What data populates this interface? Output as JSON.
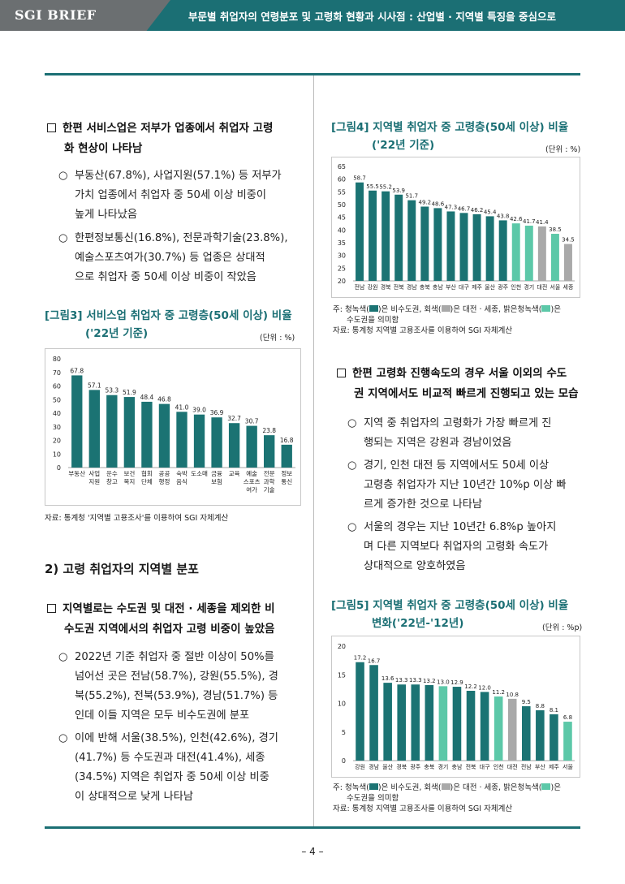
{
  "header": {
    "brand": "SGI BRIEF",
    "title": "부문별 취업자의 연령분포 및 고령화 현황과 시사점 : 산업별 · 지역별 특징을 중심으로"
  },
  "left": {
    "b1": "한편 서비스업은 저부가 업종에서 취업자 고령화 현상이 나타남",
    "b1_l1": "한편 서비스업은 저부가 업종에서 취업자 고령",
    "b1_l2": "화 현상이 나타남",
    "o1_l1": "부동산(67.8%), 사업지원(57.1%) 등 저부가",
    "o1_l2": "가치 업종에서 취업자 중 50세 이상 비중이",
    "o1_l3": "높게 나타났음",
    "o2_l1": "한편정보통신(16.8%), 전문과학기술(23.8%),",
    "o2_l2": "예술스포츠여가(30.7%) 등 업종은 상대적",
    "o2_l3": "으로 취업자 중 50세 이상 비중이 작았음",
    "fig3_title_l1": "[그림3] 서비스업 취업자 중 고령층(50세 이상) 비율",
    "fig3_title_l2": "('22년 기준)",
    "fig3_unit": "(단위 : %)",
    "fig3_source": "자료: 통계청 '지역별 고용조사'를 이용하여 SGI 자체계산",
    "sec2": "2) 고령 취업자의 지역별 분포",
    "b2_l1": "지역별로는 수도권 및 대전 · 세종을 제외한 비",
    "b2_l2": "수도권 지역에서의 취업자 고령 비중이 높았음",
    "o3_l1": "2022년 기준 취업자 중 절반 이상이 50%를",
    "o3_l2": "넘어선 곳은 전남(58.7%), 강원(55.5%), 경",
    "o3_l3": "북(55.2%), 전북(53.9%), 경남(51.7%) 등",
    "o3_l4": "인데 이들 지역은 모두 비수도권에 분포",
    "o4_l1": "이에 반해 서울(38.5%), 인천(42.6%), 경기",
    "o4_l2": "(41.7%) 등 수도권과 대전(41.4%), 세종",
    "o4_l3": "(34.5%) 지역은 취업자 중 50세 이상 비중",
    "o4_l4": "이 상대적으로 낮게 나타남"
  },
  "right": {
    "fig4_title_l1": "[그림4] 지역별 취업자 중 고령층(50세 이상) 비율",
    "fig4_title_l2": "('22년 기준)",
    "fig4_unit": "(단위 : %)",
    "fig4_note_a": "주: 청녹색(",
    "fig4_note_b": ")은 비수도권, 회색(",
    "fig4_note_c": ")은 대전 · 세종, 밝은청녹색(",
    "fig4_note_d": ")은",
    "fig4_note_l2": "수도권을 의미함",
    "fig4_source": "자료: 통계청 지역별 고용조사를 이용하여 SGI 자체계산",
    "b3_l1": "한편 고령화 진행속도의 경우 서울 이외의 수도",
    "b3_l2": "권 지역에서도 비교적 빠르게 진행되고 있는 모습",
    "o5_l1": "지역 중 취업자의 고령화가 가장 빠르게 진",
    "o5_l2": "행되는 지역은 강원과 경남이었음",
    "o6_l1": "경기, 인천 대전 등 지역에서도 50세 이상",
    "o6_l2": "고령층 취업자가 지난 10년간 10%p 이상 빠",
    "o6_l3": "르게 증가한 것으로 나타남",
    "o7_l1": "서울의 경우는 지난 10년간 6.8%p 높아지",
    "o7_l2": "며 다른 지역보다 취업자의 고령화 속도가",
    "o7_l3": "상대적으로 양호하였음",
    "fig5_title_l1": "[그림5] 지역별 취업자 중 고령층(50세 이상) 비율",
    "fig5_title_l2": "변화('22년-'12년)",
    "fig5_unit": "(단위 : %p)",
    "fig5_note_a": "주: 청녹색(",
    "fig5_note_b": ")은 비수도권, 회색(",
    "fig5_note_c": ")은 대전 · 세종, 밝은청녹색(",
    "fig5_note_d": ")은",
    "fig5_note_l2": "수도권을 의미함",
    "fig5_source": "자료: 통계청 지역별 고용조사를 이용하여 SGI 자체계산"
  },
  "bullet_marks": {
    "square": "□",
    "circle": "○"
  },
  "page_number": "– 4 –",
  "colors": {
    "teal": "#1b7373",
    "gray": "#a9a9a9",
    "light_green": "#5cc8a8",
    "header": "#1b6f74"
  },
  "chart_data": [
    {
      "id": "fig3",
      "type": "bar",
      "categories": [
        [
          "부동산"
        ],
        [
          "사업",
          "지원"
        ],
        [
          "운수",
          "창고"
        ],
        [
          "보건",
          "복지"
        ],
        [
          "협회",
          "단체"
        ],
        [
          "공공",
          "행정"
        ],
        [
          "숙박",
          "음식"
        ],
        [
          "도소매"
        ],
        [
          "금융",
          "보험"
        ],
        [
          "교육"
        ],
        [
          "예술",
          "스포츠",
          "여가"
        ],
        [
          "전문",
          "과학",
          "기술"
        ],
        [
          "정보",
          "통신"
        ]
      ],
      "values": [
        67.8,
        57.1,
        53.3,
        51.9,
        48.4,
        46.8,
        41.0,
        39.0,
        36.9,
        32.7,
        30.7,
        23.8,
        16.8
      ],
      "labels": [
        "67.8",
        "57.1",
        "53.3",
        "51.9",
        "48.4",
        "46.8",
        "41.0",
        "39.0",
        "36.9",
        "32.7",
        "30.7",
        "23.8",
        "16.8"
      ],
      "ylim": [
        0,
        80
      ],
      "yticks": [
        0,
        10,
        20,
        30,
        40,
        50,
        60,
        70,
        80
      ],
      "bar_colors": [
        "teal",
        "teal",
        "teal",
        "teal",
        "teal",
        "teal",
        "teal",
        "teal",
        "teal",
        "teal",
        "teal",
        "teal",
        "teal"
      ]
    },
    {
      "id": "fig4",
      "type": "bar",
      "categories": [
        [
          "전남"
        ],
        [
          "강원"
        ],
        [
          "경북"
        ],
        [
          "전북"
        ],
        [
          "경남"
        ],
        [
          "충북"
        ],
        [
          "충남"
        ],
        [
          "부산"
        ],
        [
          "대구"
        ],
        [
          "제주"
        ],
        [
          "울산"
        ],
        [
          "광주"
        ],
        [
          "인천"
        ],
        [
          "경기"
        ],
        [
          "대전"
        ],
        [
          "서울"
        ],
        [
          "세종"
        ]
      ],
      "values": [
        58.7,
        55.5,
        55.2,
        53.9,
        51.7,
        49.2,
        48.6,
        47.3,
        46.7,
        46.2,
        45.4,
        43.8,
        42.6,
        41.7,
        41.4,
        38.5,
        34.5
      ],
      "labels": [
        "58.7",
        "55.5",
        "55.2",
        "53.9",
        "51.7",
        "49.2",
        "48.6",
        "47.3",
        "46.7",
        "46.2",
        "45.4",
        "43.8",
        "42.6",
        "41.7",
        "41.4",
        "38.5",
        "34.5"
      ],
      "ylim": [
        20,
        65
      ],
      "yticks": [
        20,
        25,
        30,
        35,
        40,
        45,
        50,
        55,
        60,
        65
      ],
      "bar_colors": [
        "teal",
        "teal",
        "teal",
        "teal",
        "teal",
        "teal",
        "teal",
        "teal",
        "teal",
        "teal",
        "teal",
        "teal",
        "light_green",
        "light_green",
        "gray",
        "light_green",
        "gray"
      ]
    },
    {
      "id": "fig5",
      "type": "bar",
      "categories": [
        [
          "강원"
        ],
        [
          "경남"
        ],
        [
          "울산"
        ],
        [
          "경북"
        ],
        [
          "광주"
        ],
        [
          "충북"
        ],
        [
          "경기"
        ],
        [
          "충남"
        ],
        [
          "전북"
        ],
        [
          "대구"
        ],
        [
          "인천"
        ],
        [
          "대전"
        ],
        [
          "전남"
        ],
        [
          "부산"
        ],
        [
          "제주"
        ],
        [
          "서울"
        ]
      ],
      "values": [
        17.2,
        16.7,
        13.6,
        13.3,
        13.3,
        13.2,
        13.0,
        12.9,
        12.2,
        12.0,
        11.2,
        10.8,
        9.5,
        8.8,
        8.1,
        6.8
      ],
      "labels": [
        "17.2",
        "16.7",
        "13.6",
        "13.3",
        "13.3",
        "13.2",
        "13.0",
        "12.9",
        "12.2",
        "12.0",
        "11.2",
        "10.8",
        "9.5",
        "8.8",
        "8.1",
        "6.8"
      ],
      "ylim": [
        0,
        20
      ],
      "yticks": [
        0,
        5,
        10,
        15,
        20
      ],
      "bar_colors": [
        "teal",
        "teal",
        "teal",
        "teal",
        "teal",
        "teal",
        "light_green",
        "teal",
        "teal",
        "teal",
        "light_green",
        "gray",
        "teal",
        "teal",
        "teal",
        "light_green"
      ]
    }
  ]
}
